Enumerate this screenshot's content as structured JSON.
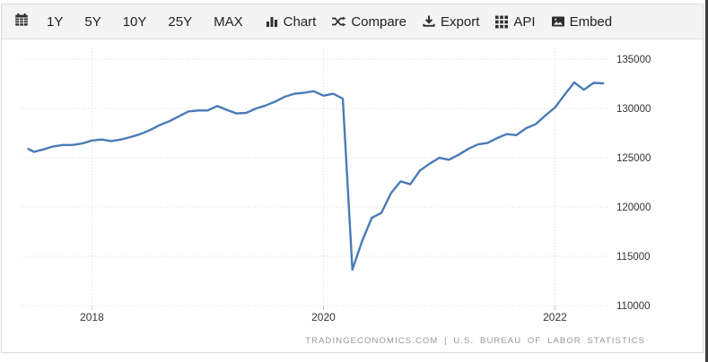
{
  "toolbar": {
    "ranges": [
      "1Y",
      "5Y",
      "10Y",
      "25Y",
      "MAX"
    ],
    "actions": [
      {
        "icon": "bar-chart-icon",
        "label": "Chart"
      },
      {
        "icon": "compare-shuffle-icon",
        "label": "Compare"
      },
      {
        "icon": "export-download-icon",
        "label": "Export"
      },
      {
        "icon": "api-grid-icon",
        "label": "API"
      },
      {
        "icon": "embed-image-icon",
        "label": "Embed"
      }
    ]
  },
  "attribution": "TRADINGECONOMICS.COM | U.S. BUREAU OF LABOR STATISTICS",
  "colors": {
    "line": "#4a7bb7",
    "toolbar_bg": "#f4f4f4",
    "grid": "#d9d9d9",
    "axis_text": "#333333",
    "attribution_text": "#979797"
  },
  "chart_data": {
    "type": "line",
    "title": "",
    "xlabel": "",
    "ylabel": "",
    "legend": "none",
    "grid": "dotted",
    "xlim": [
      2017.4,
      2022.5
    ],
    "ylim": [
      110000,
      136100
    ],
    "x_ticks": [
      2018,
      2020,
      2022
    ],
    "x_tick_labels": [
      "2018",
      "2020",
      "2022"
    ],
    "y_ticks": [
      110000,
      115000,
      120000,
      125000,
      130000,
      135000
    ],
    "y_tick_labels": [
      "110000",
      "115000",
      "120000",
      "125000",
      "130000",
      "135000"
    ],
    "series": [
      {
        "name": "",
        "color": "#4a7bb7",
        "points": [
          [
            2017.45,
            125900
          ],
          [
            2017.5,
            125600
          ],
          [
            2017.583,
            125850
          ],
          [
            2017.667,
            126150
          ],
          [
            2017.75,
            126300
          ],
          [
            2017.833,
            126300
          ],
          [
            2017.917,
            126450
          ],
          [
            2018.0,
            126750
          ],
          [
            2018.083,
            126850
          ],
          [
            2018.167,
            126700
          ],
          [
            2018.25,
            126850
          ],
          [
            2018.333,
            127100
          ],
          [
            2018.417,
            127400
          ],
          [
            2018.5,
            127800
          ],
          [
            2018.583,
            128300
          ],
          [
            2018.667,
            128700
          ],
          [
            2018.75,
            129200
          ],
          [
            2018.833,
            129700
          ],
          [
            2018.917,
            129800
          ],
          [
            2019.0,
            129800
          ],
          [
            2019.083,
            130250
          ],
          [
            2019.167,
            129850
          ],
          [
            2019.25,
            129500
          ],
          [
            2019.333,
            129550
          ],
          [
            2019.417,
            130000
          ],
          [
            2019.5,
            130300
          ],
          [
            2019.583,
            130700
          ],
          [
            2019.667,
            131200
          ],
          [
            2019.75,
            131500
          ],
          [
            2019.833,
            131600
          ],
          [
            2019.917,
            131750
          ],
          [
            2020.0,
            131300
          ],
          [
            2020.083,
            131500
          ],
          [
            2020.167,
            131000
          ],
          [
            2020.25,
            113650
          ],
          [
            2020.333,
            116500
          ],
          [
            2020.417,
            118900
          ],
          [
            2020.5,
            119400
          ],
          [
            2020.583,
            121400
          ],
          [
            2020.667,
            122600
          ],
          [
            2020.75,
            122300
          ],
          [
            2020.833,
            123700
          ],
          [
            2020.917,
            124400
          ],
          [
            2021.0,
            125000
          ],
          [
            2021.083,
            124800
          ],
          [
            2021.167,
            125300
          ],
          [
            2021.25,
            125900
          ],
          [
            2021.333,
            126350
          ],
          [
            2021.417,
            126500
          ],
          [
            2021.5,
            127000
          ],
          [
            2021.583,
            127400
          ],
          [
            2021.667,
            127300
          ],
          [
            2021.75,
            128000
          ],
          [
            2021.833,
            128400
          ],
          [
            2021.917,
            129300
          ],
          [
            2022.0,
            130100
          ],
          [
            2022.083,
            131400
          ],
          [
            2022.167,
            132650
          ],
          [
            2022.25,
            131900
          ],
          [
            2022.333,
            132600
          ],
          [
            2022.417,
            132550
          ]
        ]
      }
    ]
  }
}
